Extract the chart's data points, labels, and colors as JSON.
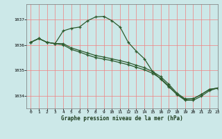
{
  "title": "Graphe pression niveau de la mer (hPa)",
  "bg_color": "#cce8e8",
  "grid_color": "#f08080",
  "line_color": "#2d5a2d",
  "xlim": [
    -0.5,
    23
  ],
  "ylim": [
    1033.5,
    1037.6
  ],
  "yticks": [
    1034,
    1035,
    1036,
    1037
  ],
  "xticks": [
    0,
    1,
    2,
    3,
    4,
    5,
    6,
    7,
    8,
    9,
    10,
    11,
    12,
    13,
    14,
    15,
    16,
    17,
    18,
    19,
    20,
    21,
    22,
    23
  ],
  "series1": [
    [
      0,
      1036.1
    ],
    [
      1,
      1036.25
    ],
    [
      2,
      1036.1
    ],
    [
      3,
      1036.05
    ],
    [
      4,
      1036.55
    ],
    [
      5,
      1036.65
    ],
    [
      6,
      1036.7
    ],
    [
      7,
      1036.95
    ],
    [
      8,
      1037.1
    ],
    [
      9,
      1037.12
    ],
    [
      10,
      1036.95
    ],
    [
      11,
      1036.7
    ],
    [
      12,
      1036.1
    ],
    [
      13,
      1035.75
    ],
    [
      14,
      1035.45
    ],
    [
      15,
      1034.95
    ],
    [
      16,
      1034.65
    ],
    [
      17,
      1034.35
    ],
    [
      18,
      1034.05
    ],
    [
      19,
      1033.85
    ],
    [
      20,
      1033.88
    ],
    [
      21,
      1034.05
    ],
    [
      22,
      1034.25
    ],
    [
      23,
      1034.3
    ]
  ],
  "series2": [
    [
      0,
      1036.1
    ],
    [
      1,
      1036.25
    ],
    [
      2,
      1036.1
    ],
    [
      3,
      1036.05
    ],
    [
      4,
      1036.05
    ],
    [
      5,
      1035.88
    ],
    [
      6,
      1035.78
    ],
    [
      7,
      1035.68
    ],
    [
      8,
      1035.58
    ],
    [
      9,
      1035.52
    ],
    [
      10,
      1035.45
    ],
    [
      11,
      1035.38
    ],
    [
      12,
      1035.3
    ],
    [
      13,
      1035.2
    ],
    [
      14,
      1035.1
    ],
    [
      15,
      1034.95
    ],
    [
      16,
      1034.75
    ],
    [
      17,
      1034.45
    ],
    [
      18,
      1034.1
    ],
    [
      19,
      1033.88
    ],
    [
      20,
      1033.88
    ],
    [
      21,
      1034.05
    ],
    [
      22,
      1034.25
    ],
    [
      23,
      1034.3
    ]
  ],
  "series3": [
    [
      0,
      1036.1
    ],
    [
      1,
      1036.25
    ],
    [
      2,
      1036.1
    ],
    [
      3,
      1036.05
    ],
    [
      4,
      1036.0
    ],
    [
      5,
      1035.82
    ],
    [
      6,
      1035.72
    ],
    [
      7,
      1035.6
    ],
    [
      8,
      1035.5
    ],
    [
      9,
      1035.44
    ],
    [
      10,
      1035.38
    ],
    [
      11,
      1035.3
    ],
    [
      12,
      1035.22
    ],
    [
      13,
      1035.12
    ],
    [
      14,
      1035.02
    ],
    [
      15,
      1034.88
    ],
    [
      16,
      1034.68
    ],
    [
      17,
      1034.38
    ],
    [
      18,
      1034.05
    ],
    [
      19,
      1033.82
    ],
    [
      20,
      1033.82
    ],
    [
      21,
      1033.98
    ],
    [
      22,
      1034.2
    ],
    [
      23,
      1034.3
    ]
  ]
}
